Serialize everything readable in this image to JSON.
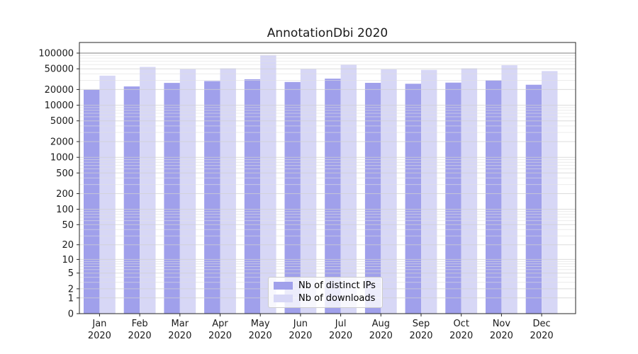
{
  "chart_data": {
    "type": "bar",
    "title": "AnnotationDbi 2020",
    "categories": [
      "Jan",
      "Feb",
      "Mar",
      "Apr",
      "May",
      "Jun",
      "Jul",
      "Aug",
      "Sep",
      "Oct",
      "Nov",
      "Dec"
    ],
    "category_year": "2020",
    "series": [
      {
        "name": "Nb of distinct IPs",
        "color": "#a0a0eb",
        "values": [
          19800,
          22900,
          26800,
          29100,
          31500,
          27900,
          32300,
          26900,
          25800,
          27100,
          30000,
          24700
        ]
      },
      {
        "name": "Nb of downloads",
        "color": "#d7d7f6",
        "values": [
          36900,
          54400,
          49100,
          51100,
          92000,
          49400,
          59700,
          48700,
          47600,
          51100,
          58600,
          45200
        ]
      }
    ],
    "yscale": "symlog",
    "yticks": [
      0,
      1,
      2,
      5,
      10,
      20,
      50,
      100,
      200,
      500,
      1000,
      2000,
      5000,
      10000,
      20000,
      50000,
      100000
    ],
    "ylim": [
      0,
      160000
    ],
    "xlabel": "",
    "ylabel": "",
    "grid": true,
    "legend_position": "lower-center",
    "colors": {
      "grid_major": "#d0d0d0",
      "grid_minor": "#dfdfdf",
      "grid_top": "#9a9a9a",
      "axis": "#262626",
      "text": "#1a1a1a",
      "legend_border": "#cccccc",
      "background": "#ffffff"
    }
  }
}
